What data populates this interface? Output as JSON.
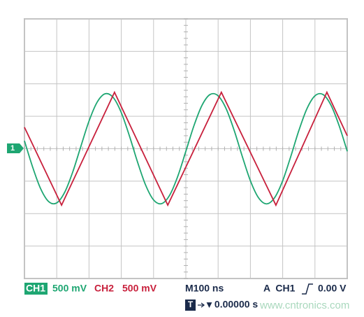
{
  "chart_data": {
    "type": "line",
    "xlim": [
      0,
      1000
    ],
    "ylim": [
      -2000,
      2000
    ],
    "xticks": [
      0,
      100,
      200,
      300,
      400,
      500,
      600,
      700,
      800,
      900,
      1000
    ],
    "yticks": [
      -2000,
      -1500,
      -1000,
      -500,
      0,
      500,
      1000,
      1500,
      2000
    ],
    "grid": true,
    "series": [
      {
        "name": "CH1",
        "color": "#1ea672",
        "x": [
          0,
          25,
          50,
          75,
          100,
          125,
          150,
          175,
          200,
          225,
          250,
          275,
          300,
          325,
          350,
          375,
          400,
          425,
          450,
          475,
          500,
          525,
          550,
          575,
          600,
          625,
          650,
          675,
          700,
          725,
          750,
          775,
          800,
          825,
          850,
          875,
          900,
          925,
          950,
          975,
          1000
        ],
        "values": [
          121,
          -278,
          -615,
          -815,
          -835,
          -668,
          -353,
          40,
          425,
          715,
          846,
          789,
          556,
          200,
          -200,
          -556,
          -789,
          -846,
          -715,
          -425,
          -40,
          353,
          668,
          835,
          815,
          615,
          278,
          -121,
          -494,
          -755,
          -850,
          -755,
          -494,
          -121,
          278,
          615,
          815,
          835,
          668,
          353,
          -40
        ]
      },
      {
        "name": "CH2",
        "color": "#c8203c",
        "x": [
          0,
          115,
          279,
          444,
          610,
          779,
          937,
          1000
        ],
        "values": [
          330,
          -870,
          870,
          -870,
          870,
          -870,
          870,
          200
        ]
      }
    ]
  },
  "readout": {
    "ch1_scale": "500 mV",
    "ch2_scale": "500 mV",
    "timebase": "M100 ns",
    "trigger_source": "A  CH1",
    "trigger_level": "0.00 V",
    "trigger_icon": "T",
    "position": "▾ 0.00000 s",
    "marker": "1",
    "watermark": "www.cntronics.com"
  }
}
